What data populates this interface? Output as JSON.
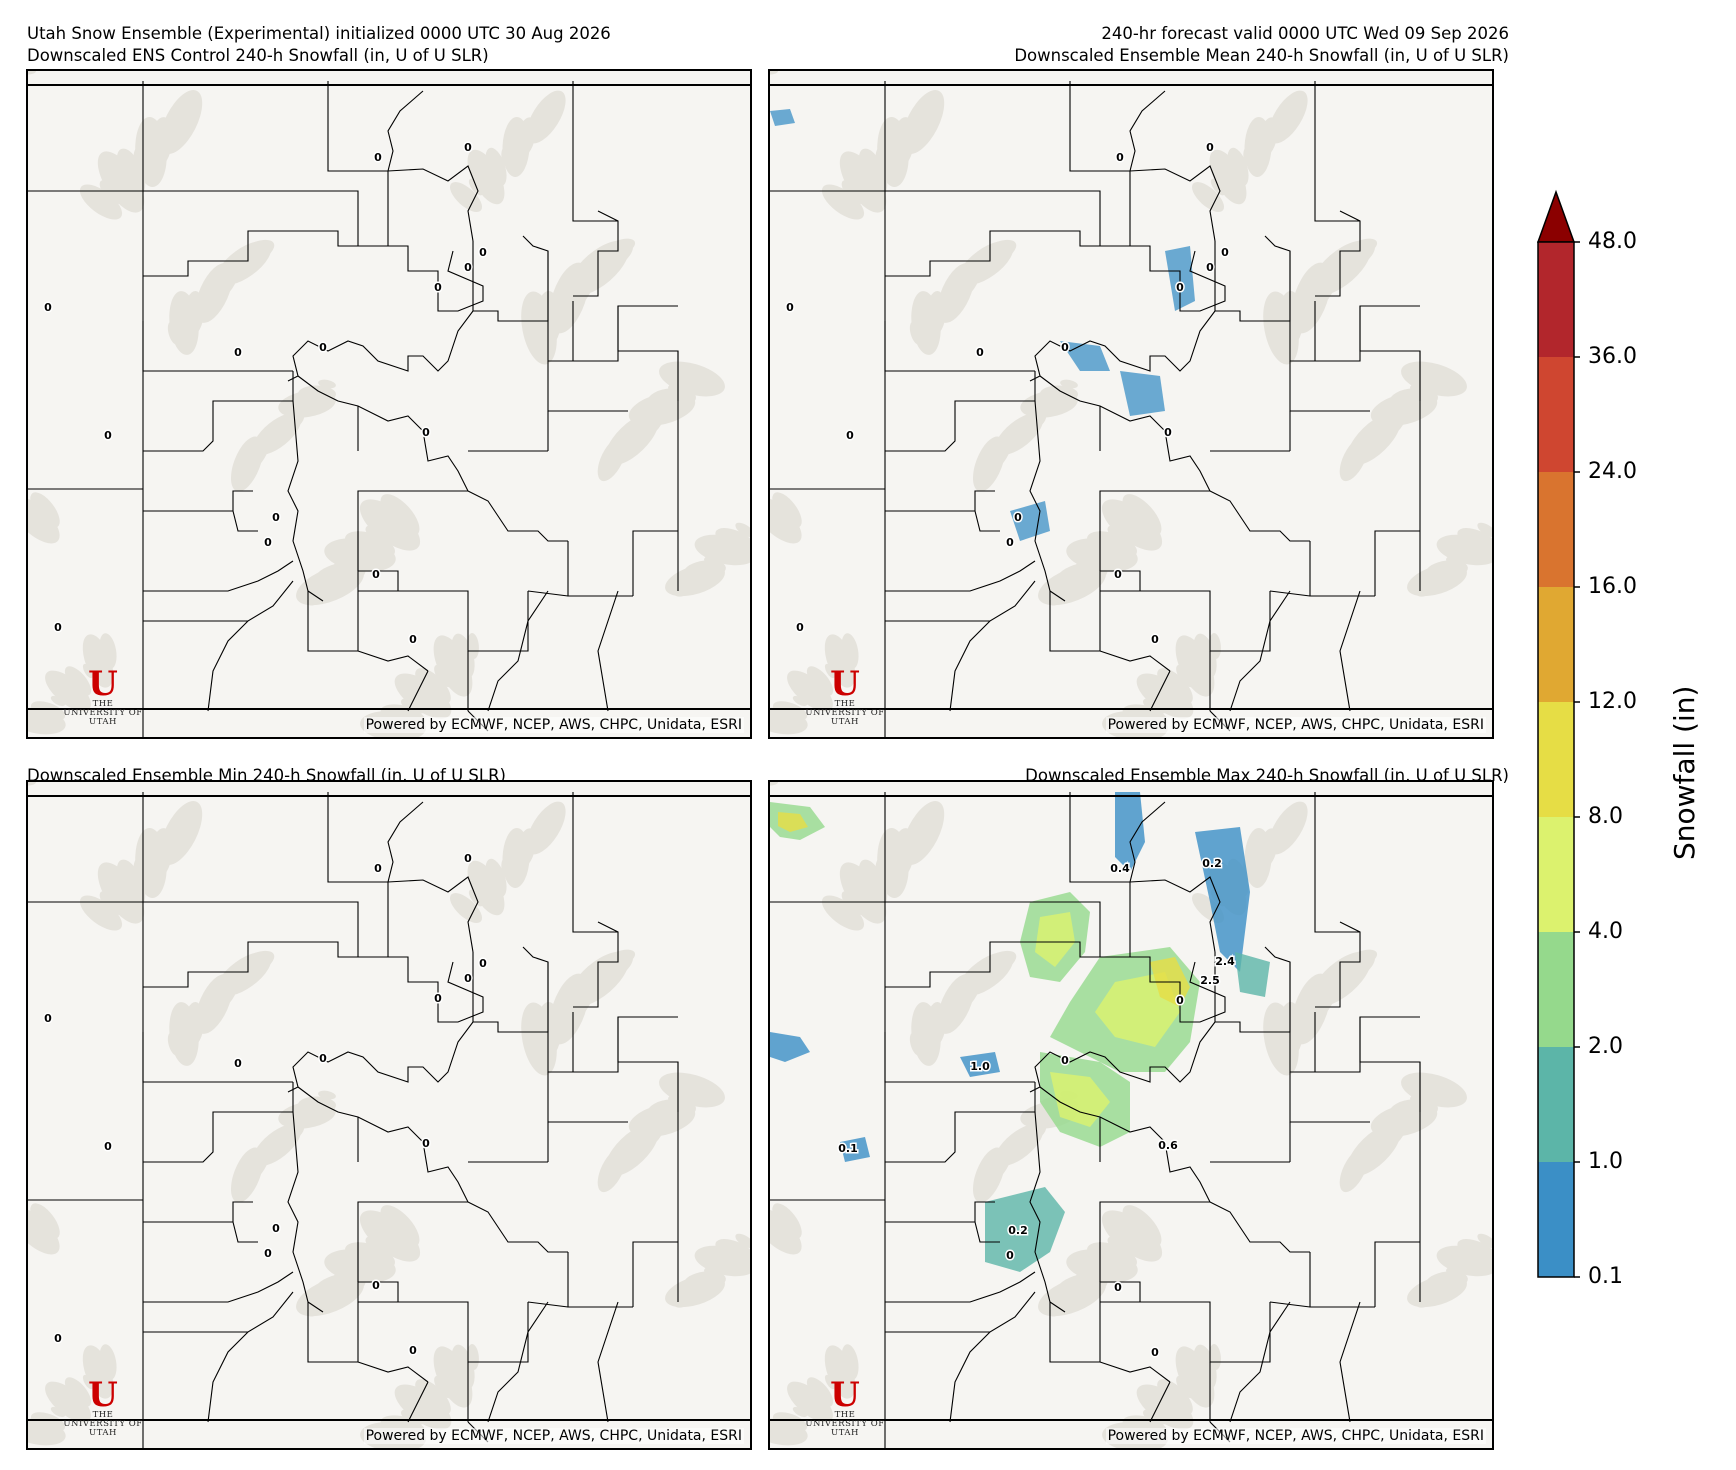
{
  "header": {
    "top_left_line1": "Utah Snow Ensemble (Experimental) initialized 0000 UTC 30 Aug 2026",
    "top_right_line1": "240-hr forecast valid 0000 UTC Wed 09 Sep 2026"
  },
  "panels": [
    {
      "title": "Downscaled ENS Control 240-h Snowfall (in, U of U SLR)",
      "credit": "Powered by ECMWF, NCEP, AWS, CHPC, Unidata, ESRI",
      "labels": [
        "0",
        "0",
        "0",
        "0",
        "0",
        "0",
        "0",
        "0",
        "0",
        "0",
        "0",
        "0",
        "0",
        "0",
        "0"
      ]
    },
    {
      "title": "Downscaled Ensemble Mean 240-h Snowfall (in, U of U SLR)",
      "credit": "Powered by ECMWF, NCEP, AWS, CHPC, Unidata, ESRI",
      "labels": [
        "0",
        "0",
        "0",
        "0",
        "0",
        "0",
        "0",
        "0",
        "0",
        "0",
        "0",
        "0",
        "0",
        "0",
        "0"
      ]
    },
    {
      "title": "Downscaled Ensemble Min 240-h Snowfall (in, U of U SLR)",
      "credit": "Powered by ECMWF, NCEP, AWS, CHPC, Unidata, ESRI",
      "labels": [
        "0",
        "0",
        "0",
        "0",
        "0",
        "0",
        "0",
        "0",
        "0",
        "0",
        "0",
        "0",
        "0",
        "0",
        "0"
      ]
    },
    {
      "title": "Downscaled Ensemble Max 240-h Snowfall (in, U of U SLR)",
      "credit": "Powered by ECMWF, NCEP, AWS, CHPC, Unidata, ESRI",
      "labels": [
        "0.4",
        "0.2",
        "2.4",
        "2.5",
        "0",
        "1.0",
        "0",
        "0.1",
        "0.6",
        "0.2",
        "0",
        "0",
        "0"
      ]
    }
  ],
  "logo": {
    "text": "THE UNIVERSITY OF UTAH"
  },
  "colorbar": {
    "label": "Snowfall (in)",
    "ticks": [
      "48.0",
      "36.0",
      "24.0",
      "16.0",
      "12.0",
      "8.0",
      "4.0",
      "2.0",
      "1.0",
      "0.1"
    ],
    "colors": [
      "#b2262c",
      "#cf4630",
      "#d9742f",
      "#e0a832",
      "#e6dd45",
      "#dcf26e",
      "#95d98c",
      "#5cb5a8",
      "#3b8fc6"
    ],
    "extend_color": "#8b0000"
  }
}
